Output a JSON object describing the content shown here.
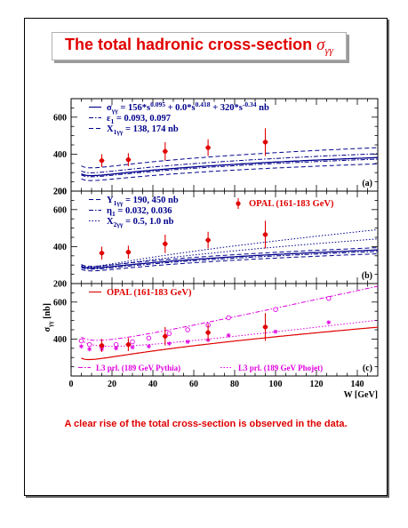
{
  "title": {
    "text": "The total hadronic cross-section ",
    "symbol": "σ",
    "subscript": "γγ"
  },
  "conclusion": "A clear rise of the total cross-section is observed in the data.",
  "colors": {
    "title_red": "#e00000",
    "model_blue": "#00008b",
    "opal_red": "#e00000",
    "l3_magenta": "#e000e0"
  },
  "chart_data": [
    {
      "type": "line",
      "panel_label": "(a)",
      "ylim": [
        200,
        700
      ],
      "y_ticks": [
        "200",
        "400",
        "600"
      ],
      "xlim": [
        0,
        150
      ],
      "legend": [
        {
          "style": "solid",
          "text": "σ_γγ = 156*s^0.095 + 0.0*s^0.418 + 320*s^-0.34 nb"
        },
        {
          "style": "dashdot",
          "text": "ε_1 = 0.093, 0.097"
        },
        {
          "style": "dashed",
          "text": "X_1γγ = 138, 174 nb"
        }
      ],
      "opal_points": [
        {
          "x": 15,
          "y": 365,
          "err": 35
        },
        {
          "x": 28,
          "y": 370,
          "err": 35
        },
        {
          "x": 46,
          "y": 415,
          "err": 50
        },
        {
          "x": 67,
          "y": 435,
          "err": 45
        },
        {
          "x": 95,
          "y": 465,
          "err": 75
        }
      ]
    },
    {
      "type": "line",
      "panel_label": "(b)",
      "ylim": [
        200,
        700
      ],
      "y_ticks": [
        "200",
        "400",
        "600"
      ],
      "xlim": [
        0,
        150
      ],
      "legend": [
        {
          "style": "dashed",
          "text": "Y_1γγ = 190, 450 nb"
        },
        {
          "style": "dashdot",
          "text": "η_1 = 0.032, 0.036"
        },
        {
          "style": "dotted",
          "text": "X_2γγ = 0.5, 1.0 nb"
        },
        {
          "style": "marker",
          "text": "OPAL (161-183 GeV)"
        }
      ],
      "opal_points": [
        {
          "x": 15,
          "y": 365,
          "err": 35
        },
        {
          "x": 28,
          "y": 370,
          "err": 35
        },
        {
          "x": 46,
          "y": 415,
          "err": 50
        },
        {
          "x": 67,
          "y": 435,
          "err": 45
        },
        {
          "x": 95,
          "y": 465,
          "err": 75
        }
      ]
    },
    {
      "type": "scatter",
      "panel_label": "(c)",
      "ylim": [
        200,
        700
      ],
      "y_ticks": [
        "200",
        "400",
        "600"
      ],
      "xlim": [
        0,
        150
      ],
      "x_ticks": [
        "0",
        "20",
        "40",
        "60",
        "80",
        "100",
        "120",
        "140"
      ],
      "xlabel": "W [GeV]",
      "ylabel": "σ_γγ [nb]",
      "legend": [
        {
          "style": "solid",
          "text": "OPAL (161-183 GeV)"
        },
        {
          "style": "dashdot",
          "text": "L3 prl. (189 GeV Pythia)"
        },
        {
          "style": "dotted",
          "text": "L3 prl. (189 GeV Phojet)"
        }
      ],
      "opal_points": [
        {
          "x": 15,
          "y": 365,
          "err": 35
        },
        {
          "x": 28,
          "y": 370,
          "err": 35
        },
        {
          "x": 46,
          "y": 415,
          "err": 50
        },
        {
          "x": 67,
          "y": 435,
          "err": 45
        },
        {
          "x": 95,
          "y": 465,
          "err": 75
        }
      ],
      "l3_pythia_points": [
        {
          "x": 5,
          "y": 390
        },
        {
          "x": 9,
          "y": 370
        },
        {
          "x": 15,
          "y": 360
        },
        {
          "x": 22,
          "y": 370
        },
        {
          "x": 30,
          "y": 385
        },
        {
          "x": 38,
          "y": 405
        },
        {
          "x": 48,
          "y": 430
        },
        {
          "x": 57,
          "y": 450
        },
        {
          "x": 67,
          "y": 475
        },
        {
          "x": 77,
          "y": 515
        },
        {
          "x": 100,
          "y": 560
        },
        {
          "x": 126,
          "y": 620
        }
      ],
      "l3_phojet_points": [
        {
          "x": 5,
          "y": 360
        },
        {
          "x": 9,
          "y": 345
        },
        {
          "x": 15,
          "y": 345
        },
        {
          "x": 22,
          "y": 350
        },
        {
          "x": 30,
          "y": 355
        },
        {
          "x": 38,
          "y": 360
        },
        {
          "x": 48,
          "y": 375
        },
        {
          "x": 57,
          "y": 385
        },
        {
          "x": 67,
          "y": 395
        },
        {
          "x": 77,
          "y": 420
        },
        {
          "x": 100,
          "y": 440
        },
        {
          "x": 126,
          "y": 490
        }
      ]
    }
  ]
}
